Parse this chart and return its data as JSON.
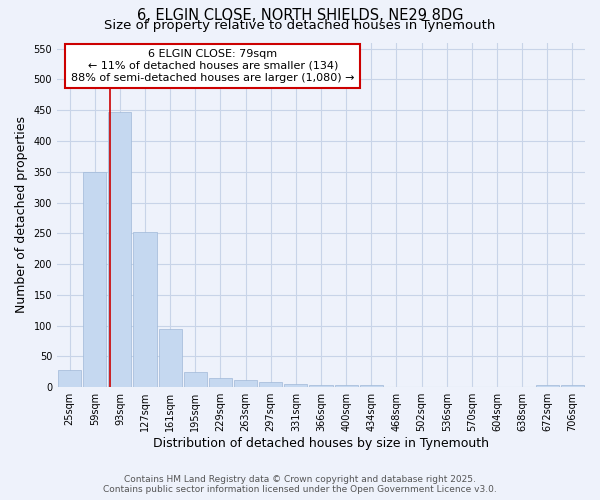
{
  "title_line1": "6, ELGIN CLOSE, NORTH SHIELDS, NE29 8DG",
  "title_line2": "Size of property relative to detached houses in Tynemouth",
  "xlabel": "Distribution of detached houses by size in Tynemouth",
  "ylabel": "Number of detached properties",
  "categories": [
    "25sqm",
    "59sqm",
    "93sqm",
    "127sqm",
    "161sqm",
    "195sqm",
    "229sqm",
    "263sqm",
    "297sqm",
    "331sqm",
    "366sqm",
    "400sqm",
    "434sqm",
    "468sqm",
    "502sqm",
    "536sqm",
    "570sqm",
    "604sqm",
    "638sqm",
    "672sqm",
    "706sqm"
  ],
  "values": [
    28,
    350,
    447,
    252,
    95,
    25,
    15,
    12,
    8,
    5,
    4,
    4,
    4,
    0,
    0,
    0,
    0,
    0,
    0,
    4,
    4
  ],
  "bar_color": "#c5d8f0",
  "bar_edge_color": "#a0b8d8",
  "grid_color": "#c8d4e8",
  "background_color": "#eef2fb",
  "vline_x_index": 1.62,
  "vline_color": "#cc0000",
  "annotation_line1": "6 ELGIN CLOSE: 79sqm",
  "annotation_line2": "← 11% of detached houses are smaller (134)",
  "annotation_line3": "88% of semi-detached houses are larger (1,080) →",
  "annotation_box_color": "#cc0000",
  "annotation_box_bg": "#ffffff",
  "ylim": [
    0,
    560
  ],
  "yticks": [
    0,
    50,
    100,
    150,
    200,
    250,
    300,
    350,
    400,
    450,
    500,
    550
  ],
  "footer_line1": "Contains HM Land Registry data © Crown copyright and database right 2025.",
  "footer_line2": "Contains public sector information licensed under the Open Government Licence v3.0.",
  "title_fontsize": 10.5,
  "subtitle_fontsize": 9.5,
  "axis_label_fontsize": 9,
  "tick_fontsize": 7,
  "annotation_fontsize": 8,
  "footer_fontsize": 6.5
}
